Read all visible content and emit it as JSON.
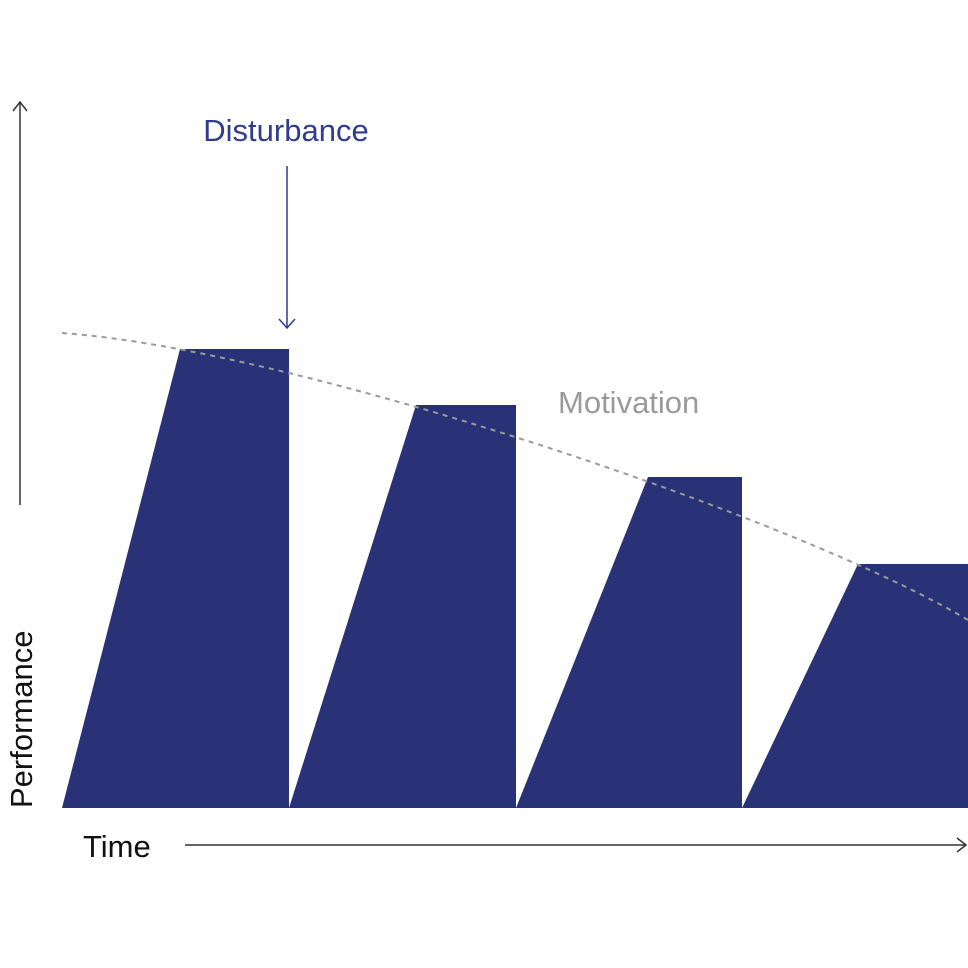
{
  "colors": {
    "blocks": "#2a3277",
    "disturbance": "#2f3c8f",
    "motivation": "#9a9a9a",
    "axis": "#333333",
    "text": "#111111"
  },
  "labels": {
    "y_axis": "Performance",
    "x_axis": "Time",
    "disturbance": "Disturbance",
    "motivation": "Motivation"
  },
  "blocks": {
    "count": 4,
    "pattern": "performance rises to a peak, holds, then drops to zero at each disturbance",
    "peak_levels_relative": [
      1.0,
      0.88,
      0.72,
      0.53
    ]
  },
  "motivation_curve": {
    "style": "dashed",
    "trend": "declining"
  }
}
